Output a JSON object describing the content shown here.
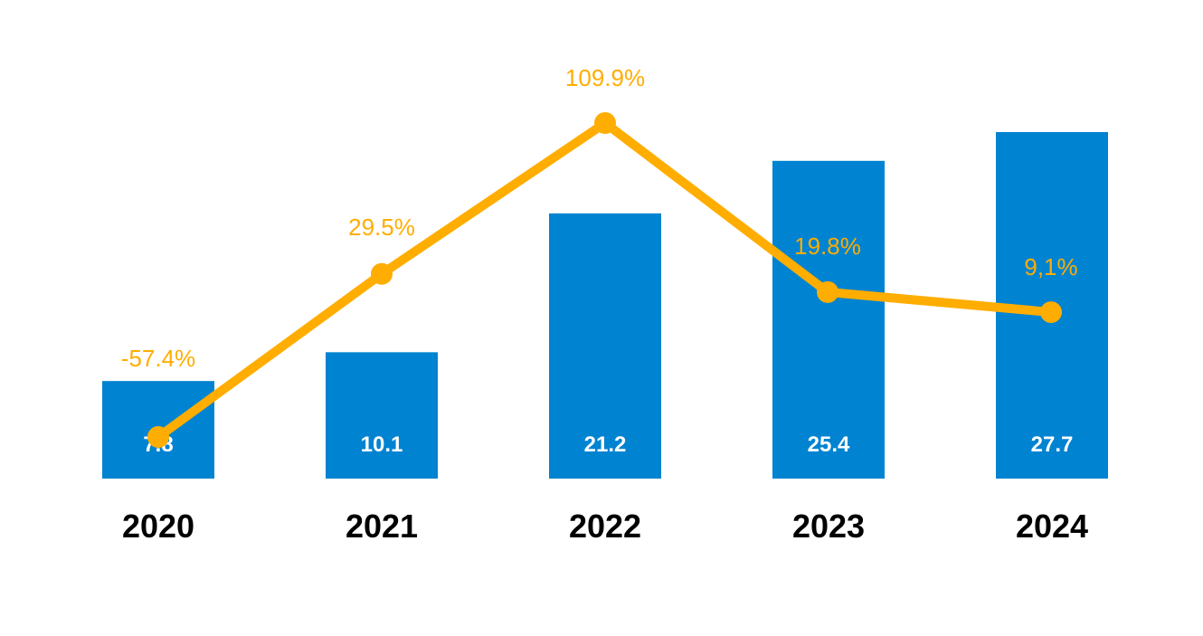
{
  "chart_data": {
    "type": "bar",
    "categories": [
      "2020",
      "2021",
      "2022",
      "2023",
      "2024"
    ],
    "series": [
      {
        "type": "bar",
        "values": [
          7.8,
          10.1,
          21.2,
          25.4,
          27.7
        ],
        "labels": [
          "7.8",
          "10.1",
          "21.2",
          "25.4",
          "27.7"
        ],
        "color": "#0083D1"
      },
      {
        "type": "line",
        "values": [
          -57.4,
          29.5,
          109.9,
          19.8,
          9.1
        ],
        "labels": [
          "-57.4%",
          "29.5%",
          "109.9%",
          "19.8%",
          "9,1%"
        ],
        "color": "#FFAD00"
      }
    ],
    "bar_ylim": [
      0,
      31
    ],
    "line_ylim": [
      -65,
      128
    ],
    "grid": false,
    "legend": "none"
  }
}
